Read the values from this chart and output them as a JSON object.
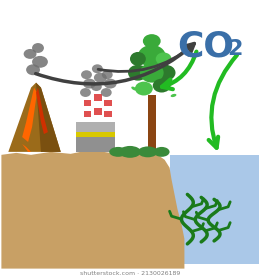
{
  "title_color": "#3a6fa8",
  "background_color": "#ffffff",
  "ground_color": "#c8a065",
  "water_color": "#aac8e8",
  "volcano_body": "#9b6b1a",
  "volcano_dark": "#7a5010",
  "lava_red": "#d03000",
  "lava_orange": "#ff6600",
  "lava_yellow": "#ffaa00",
  "factory_gray": "#909090",
  "factory_gray2": "#b0b0b0",
  "factory_yellow": "#d8c800",
  "chimney_red": "#e05050",
  "chimney_white": "#ffffff",
  "smoke_color": "#707070",
  "tree_trunk": "#8B4513",
  "tree_green1": "#2d7a2d",
  "tree_green2": "#3aaa3a",
  "tree_green3": "#4dc44d",
  "bush_green": "#3a8a3a",
  "seaweed_green": "#1a7a1a",
  "arrow_dark": "#404040",
  "arrow_green": "#22bb22",
  "figsize": [
    2.6,
    2.8
  ],
  "dpi": 100
}
